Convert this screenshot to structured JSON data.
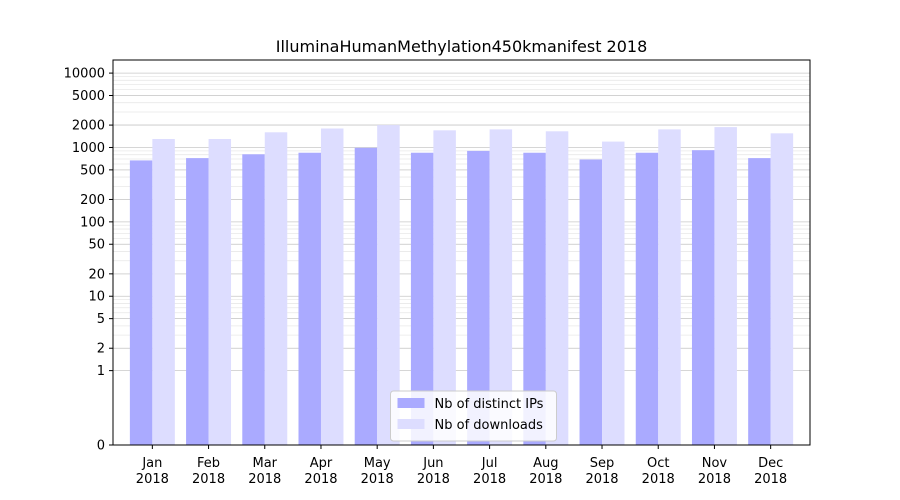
{
  "chart_data": {
    "type": "bar",
    "title": "IlluminaHumanMethylation450kmanifest 2018",
    "xlabel": "",
    "ylabel": "",
    "yscale": "symlog",
    "ylim": [
      0,
      15000
    ],
    "grid": true,
    "legend_position": "bottom-center",
    "categories": [
      [
        "Jan",
        "2018"
      ],
      [
        "Feb",
        "2018"
      ],
      [
        "Mar",
        "2018"
      ],
      [
        "Apr",
        "2018"
      ],
      [
        "May",
        "2018"
      ],
      [
        "Jun",
        "2018"
      ],
      [
        "Jul",
        "2018"
      ],
      [
        "Aug",
        "2018"
      ],
      [
        "Sep",
        "2018"
      ],
      [
        "Oct",
        "2018"
      ],
      [
        "Nov",
        "2018"
      ],
      [
        "Dec",
        "2018"
      ]
    ],
    "yticks": [
      0,
      1,
      2,
      5,
      10,
      20,
      50,
      100,
      200,
      500,
      1000,
      2000,
      5000,
      10000
    ],
    "ytick_labels": [
      "0",
      "1",
      "2",
      "5",
      "10",
      "20",
      "50",
      "100",
      "200",
      "500",
      "1000",
      "2000",
      "5000",
      "10000"
    ],
    "series": [
      {
        "name": "Nb of distinct IPs",
        "color": "#aaaaff",
        "values": [
          670,
          720,
          810,
          850,
          990,
          850,
          900,
          850,
          690,
          850,
          920,
          720
        ]
      },
      {
        "name": "Nb of downloads",
        "color": "#ddddff",
        "values": [
          1300,
          1300,
          1600,
          1800,
          2000,
          1700,
          1750,
          1650,
          1200,
          1750,
          1880,
          1550
        ]
      }
    ]
  }
}
